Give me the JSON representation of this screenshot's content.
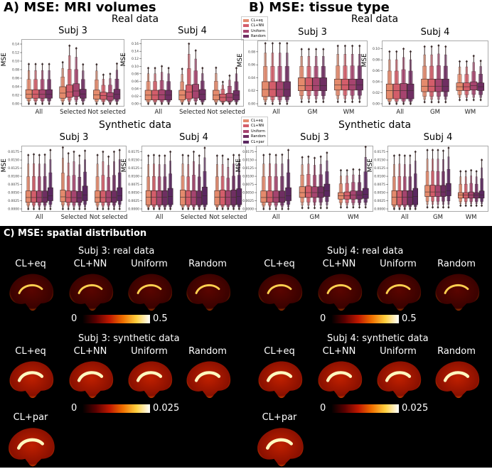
{
  "sections": {
    "a": "A) MSE: MRI volumes",
    "b": "B) MSE: tissue type",
    "c": "C) MSE: spatial distribution",
    "real": "Real data",
    "synthetic": "Synthetic data",
    "ylabel": "MSE"
  },
  "colors": {
    "CL+eq": "#e48a6c",
    "CL+NN": "#d35d6a",
    "Uniform": "#a6446f",
    "Random": "#6f2e62",
    "CL+par": "#5a2760"
  },
  "legend_real": [
    "CL+eq",
    "CL+NN",
    "Uniform",
    "Random"
  ],
  "legend_synth": [
    "CL+eq",
    "CL+NN",
    "Uniform",
    "Random",
    "CL+par"
  ],
  "chart_data": [
    {
      "id": "a-real-3",
      "type": "boxen",
      "title": "Subj 3",
      "ylim": [
        0,
        0.145
      ],
      "yticks": [
        "0.00",
        "0.02",
        "0.04",
        "0.06",
        "0.08",
        "0.10",
        "0.12",
        "0.14"
      ],
      "groups": [
        "All",
        "Selected",
        "Not selected"
      ],
      "series": [
        "CL+eq",
        "CL+NN",
        "Uniform",
        "Random"
      ],
      "values": [
        [
          [
            0,
            0.013,
            0.022,
            0.033,
            0.093
          ],
          [
            0,
            0.013,
            0.022,
            0.033,
            0.093
          ],
          [
            0,
            0.013,
            0.022,
            0.033,
            0.093
          ],
          [
            0,
            0.013,
            0.022,
            0.033,
            0.093
          ]
        ],
        [
          [
            0,
            0.013,
            0.025,
            0.04,
            0.097
          ],
          [
            0,
            0.015,
            0.028,
            0.044,
            0.136
          ],
          [
            0,
            0.017,
            0.03,
            0.047,
            0.13
          ],
          [
            0,
            0.013,
            0.023,
            0.034,
            0.092
          ]
        ],
        [
          [
            0,
            0.011,
            0.021,
            0.032,
            0.092
          ],
          [
            0,
            0.01,
            0.019,
            0.027,
            0.068
          ],
          [
            0,
            0.008,
            0.017,
            0.026,
            0.07
          ],
          [
            0,
            0.011,
            0.022,
            0.034,
            0.094
          ]
        ]
      ]
    },
    {
      "id": "a-real-4",
      "type": "boxen",
      "title": "Subj 4",
      "ylim": [
        0,
        0.165
      ],
      "yticks": [
        "0.00",
        "0.02",
        "0.04",
        "0.06",
        "0.08",
        "0.10",
        "0.12",
        "0.14",
        "0.16"
      ],
      "groups": [
        "All",
        "Selected",
        "Not selected"
      ],
      "series": [
        "CL+eq",
        "CL+NN",
        "Uniform",
        "Random"
      ],
      "values": [
        [
          [
            0,
            0.01,
            0.023,
            0.036,
            0.095
          ],
          [
            0,
            0.01,
            0.023,
            0.036,
            0.095
          ],
          [
            0,
            0.01,
            0.024,
            0.037,
            0.1
          ],
          [
            0,
            0.01,
            0.023,
            0.036,
            0.095
          ]
        ],
        [
          [
            0,
            0.01,
            0.023,
            0.036,
            0.093
          ],
          [
            0,
            0.013,
            0.031,
            0.05,
            0.16
          ],
          [
            0,
            0.015,
            0.034,
            0.052,
            0.142
          ],
          [
            0,
            0.01,
            0.025,
            0.038,
            0.095
          ]
        ],
        [
          [
            0,
            0.01,
            0.023,
            0.036,
            0.096
          ],
          [
            0,
            0.007,
            0.017,
            0.026,
            0.058
          ],
          [
            0,
            0.007,
            0.017,
            0.028,
            0.075
          ],
          [
            0,
            0.01,
            0.023,
            0.035,
            0.095
          ]
        ]
      ]
    },
    {
      "id": "b-real-3",
      "type": "boxen",
      "title": "Subj 3",
      "ylim": [
        0,
        0.093
      ],
      "yticks": [
        "0.00",
        "0.02",
        "0.04",
        "0.06",
        "0.08"
      ],
      "groups": [
        "All",
        "GM",
        "WM"
      ],
      "series": [
        "CL+eq",
        "CL+NN",
        "Uniform",
        "Random"
      ],
      "values": [
        [
          [
            0,
            0.011,
            0.022,
            0.034,
            0.093
          ],
          [
            0,
            0.011,
            0.022,
            0.034,
            0.093
          ],
          [
            0,
            0.011,
            0.022,
            0.034,
            0.093
          ],
          [
            0,
            0.011,
            0.022,
            0.034,
            0.093
          ]
        ],
        [
          [
            0.003,
            0.02,
            0.028,
            0.04,
            0.084
          ],
          [
            0.003,
            0.02,
            0.028,
            0.04,
            0.084
          ],
          [
            0.003,
            0.02,
            0.028,
            0.04,
            0.084
          ],
          [
            0.003,
            0.02,
            0.028,
            0.04,
            0.084
          ]
        ],
        [
          [
            0.003,
            0.021,
            0.029,
            0.038,
            0.089
          ],
          [
            0.003,
            0.021,
            0.029,
            0.038,
            0.089
          ],
          [
            0.003,
            0.021,
            0.029,
            0.038,
            0.089
          ],
          [
            0.003,
            0.021,
            0.029,
            0.038,
            0.089
          ]
        ]
      ]
    },
    {
      "id": "b-real-4",
      "type": "boxen",
      "title": "Subj 4",
      "ylim": [
        0,
        0.11
      ],
      "yticks": [
        "0.00",
        "0.02",
        "0.04",
        "0.06",
        "0.08",
        "0.10"
      ],
      "groups": [
        "All",
        "GM",
        "WM"
      ],
      "series": [
        "CL+eq",
        "CL+NN",
        "Uniform",
        "Random"
      ],
      "values": [
        [
          [
            0,
            0.009,
            0.024,
            0.036,
            0.095
          ],
          [
            0,
            0.009,
            0.024,
            0.036,
            0.095
          ],
          [
            0,
            0.009,
            0.024,
            0.037,
            0.1
          ],
          [
            0,
            0.009,
            0.024,
            0.036,
            0.095
          ]
        ],
        [
          [
            0.003,
            0.022,
            0.032,
            0.045,
            0.104
          ],
          [
            0.003,
            0.022,
            0.032,
            0.045,
            0.104
          ],
          [
            0.003,
            0.022,
            0.032,
            0.045,
            0.106
          ],
          [
            0.003,
            0.022,
            0.032,
            0.045,
            0.104
          ]
        ],
        [
          [
            0.007,
            0.024,
            0.031,
            0.038,
            0.077
          ],
          [
            0.007,
            0.024,
            0.031,
            0.038,
            0.077
          ],
          [
            0.007,
            0.025,
            0.033,
            0.04,
            0.087
          ],
          [
            0.007,
            0.024,
            0.031,
            0.038,
            0.078
          ]
        ]
      ]
    },
    {
      "id": "a-syn-3",
      "type": "boxen",
      "title": "Subj 3",
      "ylim": [
        0,
        0.0185
      ],
      "yticks": [
        "0.0000",
        "0.0025",
        "0.0050",
        "0.0075",
        "0.0100",
        "0.0125",
        "0.0150",
        "0.0175"
      ],
      "groups": [
        "All",
        "Selected",
        "Not selected"
      ],
      "series": [
        "CL+eq",
        "CL+NN",
        "Uniform",
        "Random",
        "CL+par"
      ],
      "values": [
        [
          [
            0,
            0.002,
            0.0035,
            0.0055,
            0.0165
          ],
          [
            0,
            0.002,
            0.0035,
            0.0055,
            0.0167
          ],
          [
            0,
            0.002,
            0.0035,
            0.0055,
            0.0165
          ],
          [
            0,
            0.002,
            0.0035,
            0.0055,
            0.0166
          ],
          [
            0,
            0.0025,
            0.004,
            0.0065,
            0.018
          ]
        ],
        [
          [
            0,
            0.0022,
            0.0037,
            0.0058,
            0.0188
          ],
          [
            0,
            0.002,
            0.0035,
            0.0055,
            0.017
          ],
          [
            0,
            0.002,
            0.0035,
            0.0055,
            0.0175
          ],
          [
            0,
            0.002,
            0.0034,
            0.0054,
            0.0163
          ],
          [
            0,
            0.0025,
            0.0043,
            0.007,
            0.0178
          ]
        ],
        [
          [
            0,
            0.002,
            0.0035,
            0.0055,
            0.0165
          ],
          [
            0,
            0.002,
            0.0035,
            0.0055,
            0.0175
          ],
          [
            0,
            0.002,
            0.0035,
            0.0055,
            0.016
          ],
          [
            0,
            0.002,
            0.0035,
            0.0055,
            0.0175
          ],
          [
            0,
            0.0025,
            0.004,
            0.0065,
            0.018
          ]
        ]
      ]
    },
    {
      "id": "a-syn-4",
      "type": "boxen",
      "title": "Subj 4",
      "ylim": [
        0,
        0.0185
      ],
      "yticks": [
        "0.0000",
        "0.0025",
        "0.0050",
        "0.0075",
        "0.0100",
        "0.0125",
        "0.0150",
        "0.0175"
      ],
      "groups": [
        "All",
        "Selected",
        "Not selected"
      ],
      "series": [
        "CL+eq",
        "CL+NN",
        "Uniform",
        "Random",
        "CL+par"
      ],
      "values": [
        [
          [
            0,
            0.0012,
            0.0036,
            0.0056,
            0.0163
          ],
          [
            0,
            0.0012,
            0.0036,
            0.0056,
            0.0165
          ],
          [
            0,
            0.0012,
            0.0036,
            0.0056,
            0.0163
          ],
          [
            0,
            0.0012,
            0.0036,
            0.0056,
            0.0163
          ],
          [
            0,
            0.0013,
            0.0038,
            0.0063,
            0.0175
          ]
        ],
        [
          [
            0,
            0.0012,
            0.0036,
            0.0058,
            0.0165
          ],
          [
            0,
            0.0012,
            0.0036,
            0.0056,
            0.0163
          ],
          [
            0,
            0.0012,
            0.0036,
            0.0056,
            0.0175
          ],
          [
            0,
            0.0012,
            0.0035,
            0.0055,
            0.0163
          ],
          [
            0,
            0.0013,
            0.004,
            0.0067,
            0.0187
          ]
        ],
        [
          [
            0,
            0.0012,
            0.0036,
            0.0056,
            0.0163
          ],
          [
            0,
            0.0012,
            0.0036,
            0.0058,
            0.0163
          ],
          [
            0,
            0.0012,
            0.0036,
            0.0056,
            0.0152
          ],
          [
            0,
            0.0012,
            0.0036,
            0.0058,
            0.0165
          ],
          [
            0,
            0.0013,
            0.0038,
            0.0062,
            0.0165
          ]
        ]
      ]
    },
    {
      "id": "b-syn-3",
      "type": "boxen",
      "title": "Subj 3",
      "ylim": [
        0,
        0.0185
      ],
      "yticks": [
        "0.0000",
        "0.0025",
        "0.0050",
        "0.0075",
        "0.0100",
        "0.0125",
        "0.0150",
        "0.0175"
      ],
      "groups": [
        "All",
        "GM",
        "WM"
      ],
      "series": [
        "CL+eq",
        "CL+NN",
        "Uniform",
        "Random",
        "CL+par"
      ],
      "values": [
        [
          [
            0,
            0.002,
            0.0035,
            0.0055,
            0.0165
          ],
          [
            0,
            0.002,
            0.0035,
            0.0055,
            0.0167
          ],
          [
            0,
            0.002,
            0.0035,
            0.0055,
            0.0165
          ],
          [
            0,
            0.002,
            0.0035,
            0.0055,
            0.0166
          ],
          [
            0,
            0.0025,
            0.004,
            0.0065,
            0.018
          ]
        ],
        [
          [
            0.0003,
            0.0035,
            0.005,
            0.0068,
            0.0158
          ],
          [
            0.0003,
            0.0035,
            0.005,
            0.007,
            0.016
          ],
          [
            0.0003,
            0.0035,
            0.005,
            0.0068,
            0.0156
          ],
          [
            0.0003,
            0.0035,
            0.005,
            0.0068,
            0.016
          ],
          [
            0.0003,
            0.0038,
            0.0055,
            0.0076,
            0.0172
          ]
        ],
        [
          [
            0.0005,
            0.003,
            0.004,
            0.005,
            0.0118
          ],
          [
            0.0005,
            0.003,
            0.004,
            0.0052,
            0.0118
          ],
          [
            0.0005,
            0.003,
            0.0042,
            0.0055,
            0.0121
          ],
          [
            0.0005,
            0.003,
            0.0042,
            0.0055,
            0.012
          ],
          [
            0.0005,
            0.0032,
            0.0045,
            0.0063,
            0.019
          ]
        ]
      ]
    },
    {
      "id": "b-syn-4",
      "type": "boxen",
      "title": "Subj 4",
      "ylim": [
        0,
        0.0185
      ],
      "yticks": [
        "0.0000",
        "0.0025",
        "0.0050",
        "0.0075",
        "0.0100",
        "0.0125",
        "0.0150",
        "0.0175"
      ],
      "groups": [
        "All",
        "GM",
        "WM"
      ],
      "series": [
        "CL+eq",
        "CL+NN",
        "Uniform",
        "Random",
        "CL+par"
      ],
      "values": [
        [
          [
            0,
            0.0012,
            0.0036,
            0.0056,
            0.0163
          ],
          [
            0,
            0.0012,
            0.0036,
            0.0056,
            0.0165
          ],
          [
            0,
            0.0012,
            0.0036,
            0.0056,
            0.0163
          ],
          [
            0,
            0.0012,
            0.0036,
            0.0056,
            0.0163
          ],
          [
            0,
            0.0013,
            0.0038,
            0.0063,
            0.0175
          ]
        ],
        [
          [
            0.0005,
            0.0038,
            0.0052,
            0.0072,
            0.018
          ],
          [
            0.0005,
            0.0038,
            0.0052,
            0.0073,
            0.018
          ],
          [
            0.0005,
            0.0038,
            0.0052,
            0.0072,
            0.018
          ],
          [
            0.0005,
            0.0038,
            0.0052,
            0.0072,
            0.0178
          ],
          [
            0.0005,
            0.004,
            0.0056,
            0.0078,
            0.0187
          ]
        ],
        [
          [
            0.001,
            0.0033,
            0.0043,
            0.005,
            0.0115
          ],
          [
            0.001,
            0.0033,
            0.0043,
            0.005,
            0.0115
          ],
          [
            0.001,
            0.0033,
            0.0043,
            0.0052,
            0.0118
          ],
          [
            0.001,
            0.0033,
            0.0043,
            0.005,
            0.0115
          ],
          [
            0.001,
            0.0033,
            0.0043,
            0.0055,
            0.015
          ]
        ]
      ]
    }
  ],
  "spatial": {
    "s3_real": {
      "title": "Subj 3: real data",
      "labels": [
        "CL+eq",
        "CL+NN",
        "Uniform",
        "Random"
      ],
      "cmin": "0",
      "cmax": "0.5"
    },
    "s4_real": {
      "title": "Subj 4: real data",
      "labels": [
        "CL+eq",
        "CL+NN",
        "Uniform",
        "Random"
      ],
      "cmin": "0",
      "cmax": "0.5"
    },
    "s3_syn": {
      "title": "Subj 3: synthetic data",
      "labels": [
        "CL+eq",
        "CL+NN",
        "Uniform",
        "Random",
        "CL+par"
      ],
      "cmin": "0",
      "cmax": "0.025"
    },
    "s4_syn": {
      "title": "Subj 4: synthetic data",
      "labels": [
        "CL+eq",
        "CL+NN",
        "Uniform",
        "Random",
        "CL+par"
      ],
      "cmin": "0",
      "cmax": "0.025"
    }
  }
}
